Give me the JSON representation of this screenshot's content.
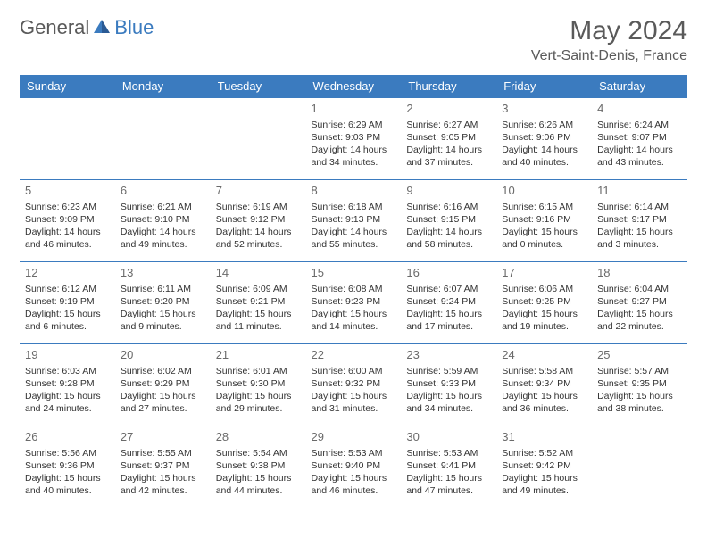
{
  "logo": {
    "text_general": "General",
    "text_blue": "Blue"
  },
  "title": {
    "month": "May 2024",
    "location": "Vert-Saint-Denis, France"
  },
  "colors": {
    "header_bg": "#3b7bbf",
    "header_text": "#ffffff",
    "day_num": "#6a6a6a",
    "cell_text": "#333333",
    "border": "#3b7bbf"
  },
  "weekdays": [
    "Sunday",
    "Monday",
    "Tuesday",
    "Wednesday",
    "Thursday",
    "Friday",
    "Saturday"
  ],
  "weeks": [
    [
      null,
      null,
      null,
      {
        "day": "1",
        "sunrise": "Sunrise: 6:29 AM",
        "sunset": "Sunset: 9:03 PM",
        "daylight1": "Daylight: 14 hours",
        "daylight2": "and 34 minutes."
      },
      {
        "day": "2",
        "sunrise": "Sunrise: 6:27 AM",
        "sunset": "Sunset: 9:05 PM",
        "daylight1": "Daylight: 14 hours",
        "daylight2": "and 37 minutes."
      },
      {
        "day": "3",
        "sunrise": "Sunrise: 6:26 AM",
        "sunset": "Sunset: 9:06 PM",
        "daylight1": "Daylight: 14 hours",
        "daylight2": "and 40 minutes."
      },
      {
        "day": "4",
        "sunrise": "Sunrise: 6:24 AM",
        "sunset": "Sunset: 9:07 PM",
        "daylight1": "Daylight: 14 hours",
        "daylight2": "and 43 minutes."
      }
    ],
    [
      {
        "day": "5",
        "sunrise": "Sunrise: 6:23 AM",
        "sunset": "Sunset: 9:09 PM",
        "daylight1": "Daylight: 14 hours",
        "daylight2": "and 46 minutes."
      },
      {
        "day": "6",
        "sunrise": "Sunrise: 6:21 AM",
        "sunset": "Sunset: 9:10 PM",
        "daylight1": "Daylight: 14 hours",
        "daylight2": "and 49 minutes."
      },
      {
        "day": "7",
        "sunrise": "Sunrise: 6:19 AM",
        "sunset": "Sunset: 9:12 PM",
        "daylight1": "Daylight: 14 hours",
        "daylight2": "and 52 minutes."
      },
      {
        "day": "8",
        "sunrise": "Sunrise: 6:18 AM",
        "sunset": "Sunset: 9:13 PM",
        "daylight1": "Daylight: 14 hours",
        "daylight2": "and 55 minutes."
      },
      {
        "day": "9",
        "sunrise": "Sunrise: 6:16 AM",
        "sunset": "Sunset: 9:15 PM",
        "daylight1": "Daylight: 14 hours",
        "daylight2": "and 58 minutes."
      },
      {
        "day": "10",
        "sunrise": "Sunrise: 6:15 AM",
        "sunset": "Sunset: 9:16 PM",
        "daylight1": "Daylight: 15 hours",
        "daylight2": "and 0 minutes."
      },
      {
        "day": "11",
        "sunrise": "Sunrise: 6:14 AM",
        "sunset": "Sunset: 9:17 PM",
        "daylight1": "Daylight: 15 hours",
        "daylight2": "and 3 minutes."
      }
    ],
    [
      {
        "day": "12",
        "sunrise": "Sunrise: 6:12 AM",
        "sunset": "Sunset: 9:19 PM",
        "daylight1": "Daylight: 15 hours",
        "daylight2": "and 6 minutes."
      },
      {
        "day": "13",
        "sunrise": "Sunrise: 6:11 AM",
        "sunset": "Sunset: 9:20 PM",
        "daylight1": "Daylight: 15 hours",
        "daylight2": "and 9 minutes."
      },
      {
        "day": "14",
        "sunrise": "Sunrise: 6:09 AM",
        "sunset": "Sunset: 9:21 PM",
        "daylight1": "Daylight: 15 hours",
        "daylight2": "and 11 minutes."
      },
      {
        "day": "15",
        "sunrise": "Sunrise: 6:08 AM",
        "sunset": "Sunset: 9:23 PM",
        "daylight1": "Daylight: 15 hours",
        "daylight2": "and 14 minutes."
      },
      {
        "day": "16",
        "sunrise": "Sunrise: 6:07 AM",
        "sunset": "Sunset: 9:24 PM",
        "daylight1": "Daylight: 15 hours",
        "daylight2": "and 17 minutes."
      },
      {
        "day": "17",
        "sunrise": "Sunrise: 6:06 AM",
        "sunset": "Sunset: 9:25 PM",
        "daylight1": "Daylight: 15 hours",
        "daylight2": "and 19 minutes."
      },
      {
        "day": "18",
        "sunrise": "Sunrise: 6:04 AM",
        "sunset": "Sunset: 9:27 PM",
        "daylight1": "Daylight: 15 hours",
        "daylight2": "and 22 minutes."
      }
    ],
    [
      {
        "day": "19",
        "sunrise": "Sunrise: 6:03 AM",
        "sunset": "Sunset: 9:28 PM",
        "daylight1": "Daylight: 15 hours",
        "daylight2": "and 24 minutes."
      },
      {
        "day": "20",
        "sunrise": "Sunrise: 6:02 AM",
        "sunset": "Sunset: 9:29 PM",
        "daylight1": "Daylight: 15 hours",
        "daylight2": "and 27 minutes."
      },
      {
        "day": "21",
        "sunrise": "Sunrise: 6:01 AM",
        "sunset": "Sunset: 9:30 PM",
        "daylight1": "Daylight: 15 hours",
        "daylight2": "and 29 minutes."
      },
      {
        "day": "22",
        "sunrise": "Sunrise: 6:00 AM",
        "sunset": "Sunset: 9:32 PM",
        "daylight1": "Daylight: 15 hours",
        "daylight2": "and 31 minutes."
      },
      {
        "day": "23",
        "sunrise": "Sunrise: 5:59 AM",
        "sunset": "Sunset: 9:33 PM",
        "daylight1": "Daylight: 15 hours",
        "daylight2": "and 34 minutes."
      },
      {
        "day": "24",
        "sunrise": "Sunrise: 5:58 AM",
        "sunset": "Sunset: 9:34 PM",
        "daylight1": "Daylight: 15 hours",
        "daylight2": "and 36 minutes."
      },
      {
        "day": "25",
        "sunrise": "Sunrise: 5:57 AM",
        "sunset": "Sunset: 9:35 PM",
        "daylight1": "Daylight: 15 hours",
        "daylight2": "and 38 minutes."
      }
    ],
    [
      {
        "day": "26",
        "sunrise": "Sunrise: 5:56 AM",
        "sunset": "Sunset: 9:36 PM",
        "daylight1": "Daylight: 15 hours",
        "daylight2": "and 40 minutes."
      },
      {
        "day": "27",
        "sunrise": "Sunrise: 5:55 AM",
        "sunset": "Sunset: 9:37 PM",
        "daylight1": "Daylight: 15 hours",
        "daylight2": "and 42 minutes."
      },
      {
        "day": "28",
        "sunrise": "Sunrise: 5:54 AM",
        "sunset": "Sunset: 9:38 PM",
        "daylight1": "Daylight: 15 hours",
        "daylight2": "and 44 minutes."
      },
      {
        "day": "29",
        "sunrise": "Sunrise: 5:53 AM",
        "sunset": "Sunset: 9:40 PM",
        "daylight1": "Daylight: 15 hours",
        "daylight2": "and 46 minutes."
      },
      {
        "day": "30",
        "sunrise": "Sunrise: 5:53 AM",
        "sunset": "Sunset: 9:41 PM",
        "daylight1": "Daylight: 15 hours",
        "daylight2": "and 47 minutes."
      },
      {
        "day": "31",
        "sunrise": "Sunrise: 5:52 AM",
        "sunset": "Sunset: 9:42 PM",
        "daylight1": "Daylight: 15 hours",
        "daylight2": "and 49 minutes."
      },
      null
    ]
  ]
}
